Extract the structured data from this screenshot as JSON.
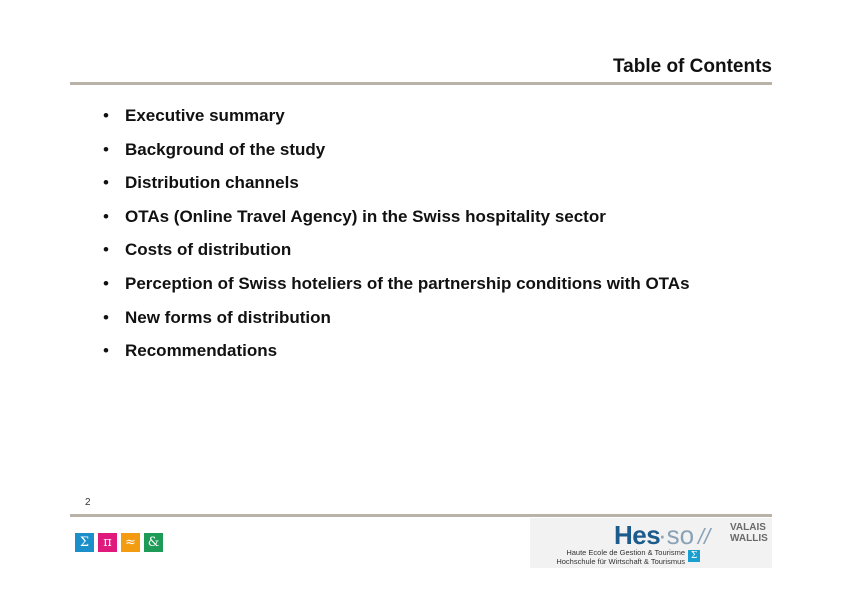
{
  "slide": {
    "title": "Table of Contents",
    "page_number": "2"
  },
  "toc": {
    "bullet": "•",
    "items": [
      "Executive summary",
      "Background of the study",
      "Distribution channels",
      "OTAs (Online Travel Agency) in the Swiss hospitality sector",
      "Costs of distribution",
      "Perception of Swiss hoteliers of the partnership conditions with OTAs",
      "New forms of distribution",
      "Recommendations"
    ]
  },
  "footer": {
    "symbols": [
      {
        "glyph": "Σ",
        "color": "#1a8fc9"
      },
      {
        "glyph": "π",
        "color": "#e0197d"
      },
      {
        "glyph": "≈",
        "color": "#f39c12"
      },
      {
        "glyph": "&",
        "color": "#1e9b57"
      }
    ],
    "logo": {
      "hes": "Hes",
      "so": "·so",
      "slashes": "//",
      "valais": "VALAIS",
      "wallis": "WALLIS",
      "school_fr": "Haute Ecole de Gestion & Tourisme",
      "school_de": "Hochschule für Wirtschaft & Tourismus",
      "sigma": "Σ",
      "brand_color": "#1c5c8c"
    }
  }
}
